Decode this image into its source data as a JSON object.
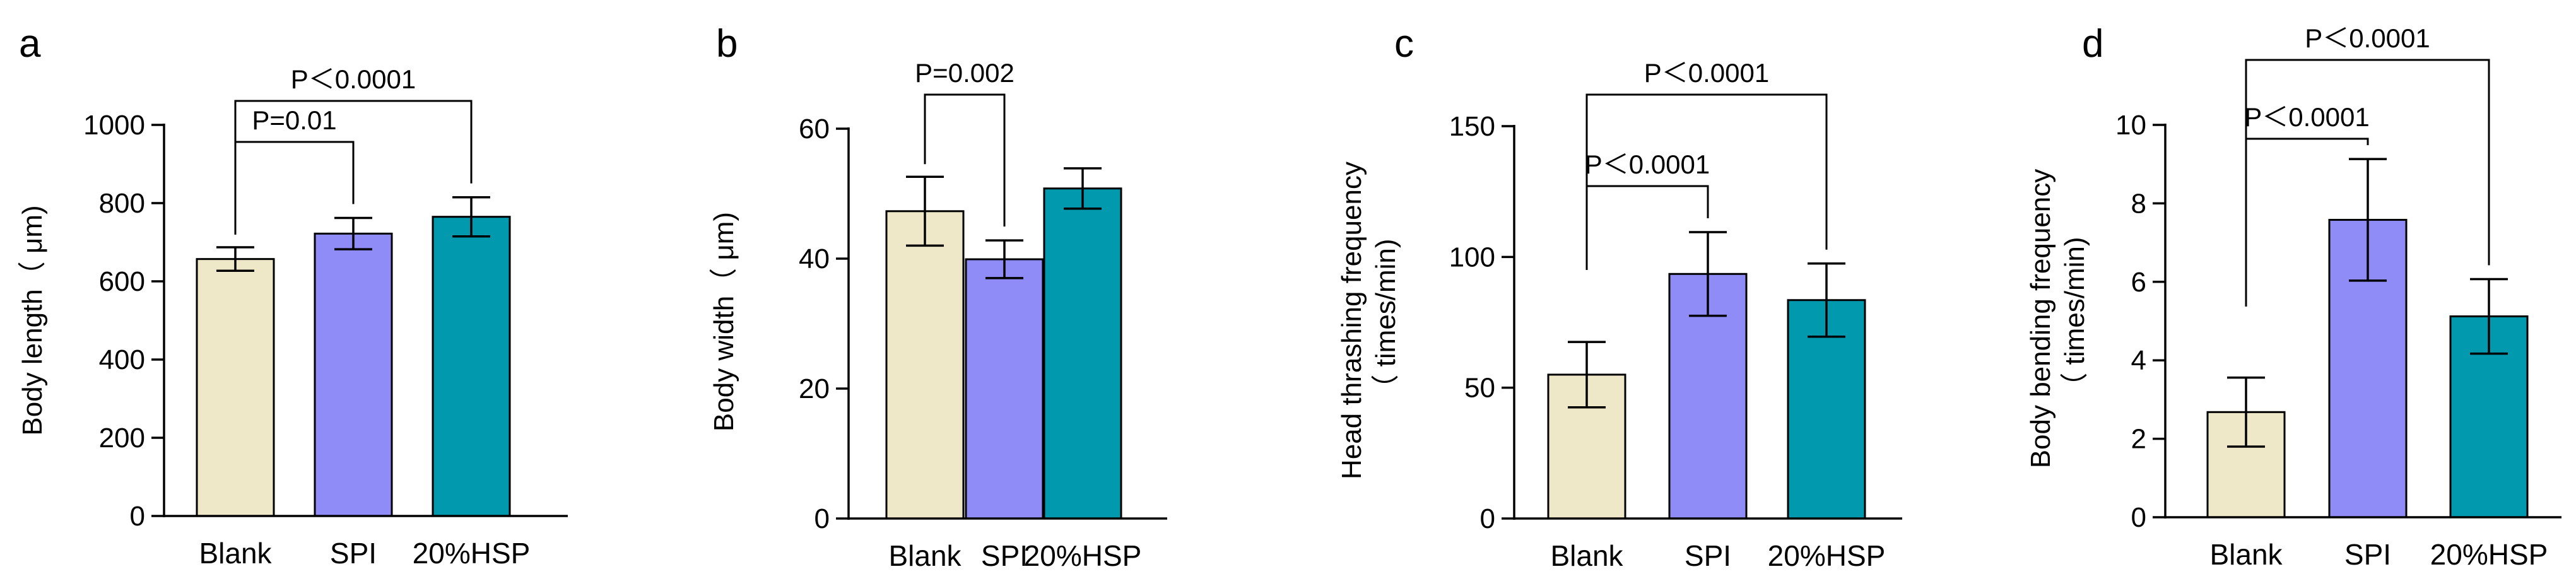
{
  "colors": {
    "blank": "#EEE7C8",
    "spi": "#8F8CF7",
    "hsp": "#0099AD",
    "stroke": "#000000"
  },
  "chart_data": [
    {
      "type": "bar",
      "panel": "a",
      "categories": [
        "Blank",
        "SPI",
        "20%HSP"
      ],
      "values": [
        657,
        722,
        765
      ],
      "errors": [
        30,
        40,
        50
      ],
      "ylabel_lines": [
        "Body length（ μm)"
      ],
      "ylim": [
        0,
        1000
      ],
      "yticks": [
        0,
        200,
        400,
        600,
        800,
        1000
      ],
      "comparisons": [
        {
          "from": 0,
          "to": 1,
          "label": "P=0.01"
        },
        {
          "from": 0,
          "to": 2,
          "label": "P＜0.0001"
        }
      ]
    },
    {
      "type": "bar",
      "panel": "b",
      "categories": [
        "Blank",
        "SPI",
        "20%HSP"
      ],
      "values": [
        47.3,
        39.9,
        50.8
      ],
      "errors": [
        5.3,
        2.9,
        3.1
      ],
      "ylabel_lines": [
        "Body width（ μm)"
      ],
      "ylim": [
        0,
        60
      ],
      "yticks": [
        0,
        20,
        40,
        60
      ],
      "comparisons": [
        {
          "from": 0,
          "to": 1,
          "label": "P=0.002"
        }
      ]
    },
    {
      "type": "bar",
      "panel": "c",
      "categories": [
        "Blank",
        "SPI",
        "20%HSP"
      ],
      "values": [
        55,
        93.5,
        83.5
      ],
      "errors": [
        12.5,
        16,
        14
      ],
      "ylabel_lines": [
        "Head thrashing frequency",
        "（ times/min)"
      ],
      "ylim": [
        0,
        150
      ],
      "yticks": [
        0,
        50,
        100,
        150
      ],
      "comparisons": [
        {
          "from": 0,
          "to": 1,
          "label": "P＜0.0001"
        },
        {
          "from": 0,
          "to": 2,
          "label": "P＜0.0001"
        }
      ]
    },
    {
      "type": "bar",
      "panel": "d",
      "categories": [
        "Blank",
        "SPI",
        "20%HSP"
      ],
      "values": [
        2.68,
        7.58,
        5.12
      ],
      "errors": [
        0.88,
        1.55,
        0.95
      ],
      "ylabel_lines": [
        "Body bending frequency",
        "（ times/min)"
      ],
      "ylim": [
        0,
        10
      ],
      "yticks": [
        0,
        2,
        4,
        6,
        8,
        10
      ],
      "comparisons": [
        {
          "from": 0,
          "to": 1,
          "label": "P＜0.0001"
        },
        {
          "from": 0,
          "to": 2,
          "label": "P＜0.0001"
        }
      ]
    }
  ]
}
